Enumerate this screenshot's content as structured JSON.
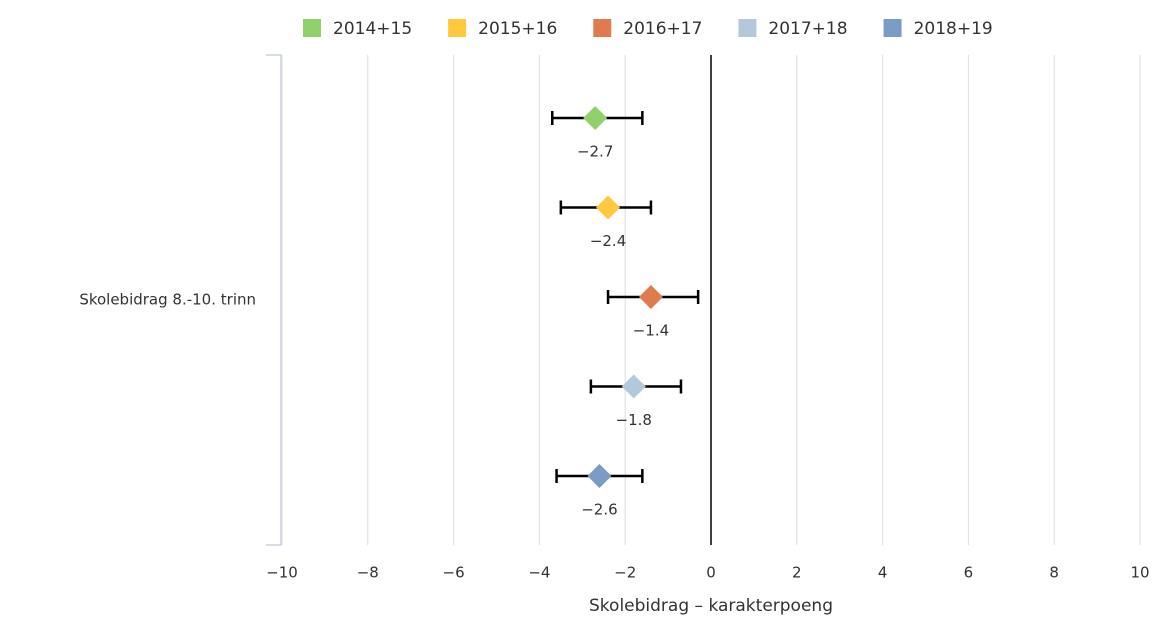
{
  "chart_data": {
    "type": "errorbar",
    "category": "Skolebidrag 8.-10. trinn",
    "xlabel": "Skolebidrag – karakterpoeng",
    "xlim": [
      -10,
      10
    ],
    "xticks": [
      {
        "value": -10,
        "label": "−10"
      },
      {
        "value": -8,
        "label": "−8"
      },
      {
        "value": -6,
        "label": "−6"
      },
      {
        "value": -4,
        "label": "−4"
      },
      {
        "value": -2,
        "label": "−2"
      },
      0,
      2,
      4,
      6,
      8,
      10
    ],
    "grid": true,
    "legend": "top",
    "series": [
      {
        "name": "2014+15",
        "color": "#8fd16a",
        "values": [
          -2.7
        ],
        "low": [
          -3.7
        ],
        "high": [
          -1.6
        ],
        "value_labels": [
          "−2.7"
        ]
      },
      {
        "name": "2015+16",
        "color": "#ffc83d",
        "values": [
          -2.4
        ],
        "low": [
          -3.5
        ],
        "high": [
          -1.4
        ],
        "value_labels": [
          "−2.4"
        ]
      },
      {
        "name": "2016+17",
        "color": "#e07b4f",
        "values": [
          -1.4
        ],
        "low": [
          -2.4
        ],
        "high": [
          -0.3
        ],
        "value_labels": [
          "−1.4"
        ]
      },
      {
        "name": "2017+18",
        "color": "#b4c8dc",
        "values": [
          -1.8
        ],
        "low": [
          -2.8
        ],
        "high": [
          -0.7
        ],
        "value_labels": [
          "−1.8"
        ]
      },
      {
        "name": "2018+19",
        "color": "#7a9cc4",
        "values": [
          -2.6
        ],
        "low": [
          -3.6
        ],
        "high": [
          -1.6
        ],
        "value_labels": [
          "−2.6"
        ]
      }
    ]
  }
}
